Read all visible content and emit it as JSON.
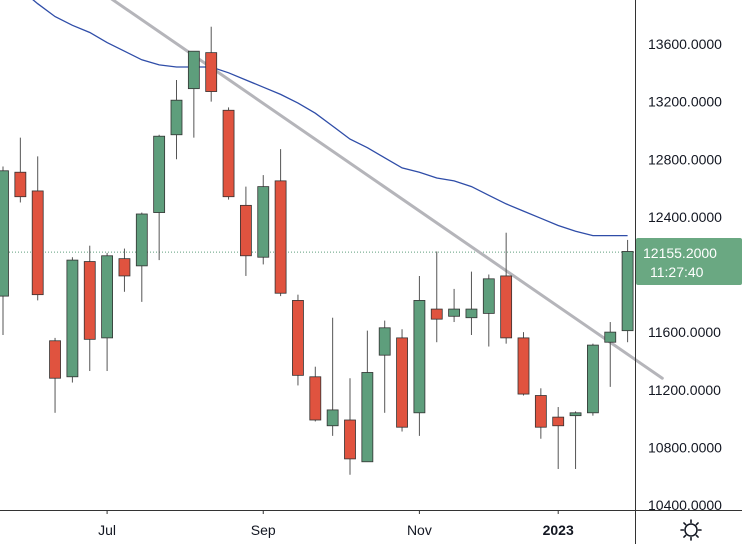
{
  "chart_data": {
    "type": "candlestick",
    "colors": {
      "up": "#5e9e7c",
      "down": "#e0533f",
      "wick": "#555555",
      "moving_average": "#2f4da8",
      "trendline": "#b5b5ba",
      "last_price_tag": "#6aa882",
      "price_line": "#5e9e7c",
      "axis_line": "#333333"
    },
    "ylim": [
      10400,
      13800
    ],
    "y_ticks": [
      "13600.0000",
      "13200.0000",
      "12800.0000",
      "12400.0000",
      "11600.0000",
      "11200.0000",
      "10800.0000",
      "10400.0000"
    ],
    "y_tick_values": [
      13600,
      13200,
      12800,
      12400,
      11600,
      11200,
      10800,
      10400
    ],
    "x_ticks": [
      {
        "label": "Jul",
        "bar": 6,
        "bold": false
      },
      {
        "label": "Sep",
        "bar": 15,
        "bold": false
      },
      {
        "label": "Nov",
        "bar": 24,
        "bold": false
      },
      {
        "label": "2023",
        "bar": 32,
        "bold": true
      }
    ],
    "last_price": {
      "value": 12155.2,
      "label": "12155.2000",
      "countdown": "11:27:40"
    },
    "candles": [
      {
        "o": 11850,
        "h": 12750,
        "l": 11580,
        "c": 12720
      },
      {
        "o": 12710,
        "h": 12950,
        "l": 12500,
        "c": 12540
      },
      {
        "o": 12580,
        "h": 12820,
        "l": 11820,
        "c": 11860
      },
      {
        "o": 11540,
        "h": 11560,
        "l": 11040,
        "c": 11280
      },
      {
        "o": 11290,
        "h": 12120,
        "l": 11250,
        "c": 12100
      },
      {
        "o": 12090,
        "h": 12200,
        "l": 11330,
        "c": 11550
      },
      {
        "o": 11560,
        "h": 12150,
        "l": 11330,
        "c": 12130
      },
      {
        "o": 12110,
        "h": 12180,
        "l": 11880,
        "c": 11990
      },
      {
        "o": 12060,
        "h": 12430,
        "l": 11810,
        "c": 12420
      },
      {
        "o": 12430,
        "h": 12970,
        "l": 12100,
        "c": 12960
      },
      {
        "o": 12970,
        "h": 13350,
        "l": 12800,
        "c": 13210
      },
      {
        "o": 13290,
        "h": 13550,
        "l": 12950,
        "c": 13550
      },
      {
        "o": 13540,
        "h": 13720,
        "l": 13200,
        "c": 13270
      },
      {
        "o": 13140,
        "h": 13160,
        "l": 12520,
        "c": 12540
      },
      {
        "o": 12480,
        "h": 12610,
        "l": 11990,
        "c": 12130
      },
      {
        "o": 12120,
        "h": 12690,
        "l": 12070,
        "c": 12610
      },
      {
        "o": 12650,
        "h": 12870,
        "l": 11850,
        "c": 11870
      },
      {
        "o": 11820,
        "h": 11860,
        "l": 11230,
        "c": 11300
      },
      {
        "o": 11290,
        "h": 11360,
        "l": 10980,
        "c": 10990
      },
      {
        "o": 10950,
        "h": 11700,
        "l": 10880,
        "c": 11060
      },
      {
        "o": 10990,
        "h": 11280,
        "l": 10610,
        "c": 10720
      },
      {
        "o": 10700,
        "h": 11610,
        "l": 10700,
        "c": 11320
      },
      {
        "o": 11440,
        "h": 11680,
        "l": 11040,
        "c": 11630
      },
      {
        "o": 11560,
        "h": 11620,
        "l": 10910,
        "c": 10940
      },
      {
        "o": 11040,
        "h": 11990,
        "l": 10880,
        "c": 11820
      },
      {
        "o": 11760,
        "h": 12160,
        "l": 11530,
        "c": 11690
      },
      {
        "o": 11710,
        "h": 11900,
        "l": 11670,
        "c": 11760
      },
      {
        "o": 11700,
        "h": 12020,
        "l": 11580,
        "c": 11760
      },
      {
        "o": 11730,
        "h": 12000,
        "l": 11500,
        "c": 11970
      },
      {
        "o": 11990,
        "h": 12290,
        "l": 11520,
        "c": 11560
      },
      {
        "o": 11560,
        "h": 11600,
        "l": 11160,
        "c": 11170
      },
      {
        "o": 11160,
        "h": 11210,
        "l": 10860,
        "c": 10940
      },
      {
        "o": 11010,
        "h": 11080,
        "l": 10650,
        "c": 10950
      },
      {
        "o": 11020,
        "h": 11050,
        "l": 10650,
        "c": 11040
      },
      {
        "o": 11040,
        "h": 11520,
        "l": 11020,
        "c": 11510
      },
      {
        "o": 11530,
        "h": 11670,
        "l": 11220,
        "c": 11600
      },
      {
        "o": 11610,
        "h": 12240,
        "l": 11530,
        "c": 12160
      }
    ],
    "moving_average": [
      14050,
      13980,
      13880,
      13790,
      13730,
      13680,
      13610,
      13550,
      13490,
      13455,
      13440,
      13440,
      13440,
      13400,
      13350,
      13300,
      13250,
      13190,
      13120,
      13030,
      12940,
      12880,
      12810,
      12740,
      12710,
      12670,
      12650,
      12610,
      12550,
      12490,
      12440,
      12390,
      12340,
      12300,
      12270,
      12270,
      12270
    ],
    "trendline": {
      "from": {
        "bar": 4,
        "value": 14100
      },
      "to": {
        "bar": 38,
        "value": 11280
      }
    }
  },
  "icons": {
    "settings": "sun-gear-icon"
  }
}
